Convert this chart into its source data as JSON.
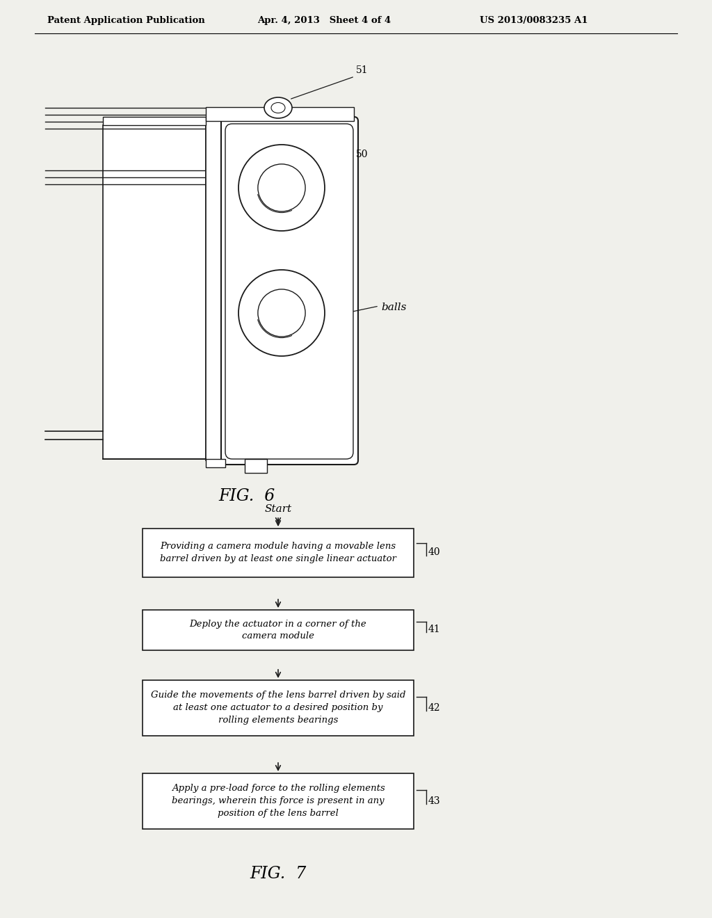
{
  "bg_color": "#f0f0eb",
  "line_color": "#1a1a1a",
  "header_left": "Patent Application Publication",
  "header_center": "Apr. 4, 2013   Sheet 4 of 4",
  "header_right": "US 2013/0083235 A1",
  "fig6_caption": "FIG.  6",
  "fig7_caption": "FIG.  7",
  "flowchart_title": "Start",
  "box_texts": [
    "Providing a camera module having a movable lens\nbarrel driven by at least one single linear actuator",
    "Deploy the actuator in a corner of the\ncamera module",
    "Guide the movements of the lens barrel driven by said\nat least one actuator to a desired position by\nrolling elements bearings",
    "Apply a pre-load force to the rolling elements\nbearings, wherein this force is present in any\nposition of the lens barrel"
  ],
  "box_labels": [
    "40",
    "41",
    "42",
    "43"
  ]
}
